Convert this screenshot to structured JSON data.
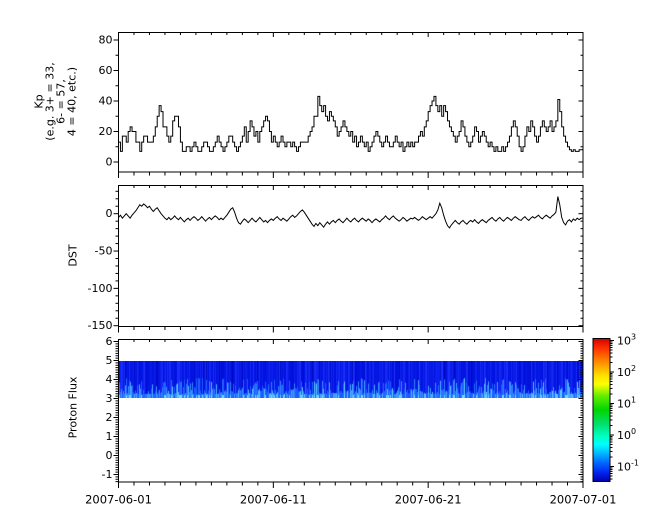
{
  "figure": {
    "background": "#ffffff",
    "series_color": "#000000"
  },
  "xaxis": {
    "major_tick_labels": [
      "2007-06-01",
      "2007-06-11",
      "2007-06-21",
      "2007-07-01"
    ],
    "major_tick_days": [
      0,
      10,
      20,
      30
    ],
    "minor_tick_interval_days": 1,
    "span_days": 30
  },
  "chart_data": [
    {
      "panel": "kp",
      "type": "line",
      "line_style": "step",
      "color": "#000000",
      "ylabel_lines": [
        "Kp",
        "(e.g. 3+ = 33,",
        "6- = 57,",
        "4 = 40, etc.)"
      ],
      "ytick_labels": [
        "0",
        "20",
        "40",
        "60",
        "80"
      ],
      "yticks": [
        0,
        20,
        40,
        60,
        80
      ],
      "ytick_minor_step": 10,
      "ylim": [
        -6.6,
        84.9
      ],
      "sample_hours": 3,
      "x_start": "2007-06-01",
      "x_end": "2007-07-01",
      "values": [
        13,
        7,
        17,
        17,
        13,
        20,
        23,
        20,
        20,
        13,
        13,
        7,
        13,
        17,
        17,
        13,
        13,
        13,
        17,
        23,
        30,
        37,
        33,
        23,
        23,
        17,
        13,
        17,
        27,
        30,
        30,
        23,
        13,
        7,
        7,
        10,
        10,
        7,
        10,
        13,
        10,
        7,
        7,
        10,
        13,
        13,
        10,
        7,
        7,
        10,
        13,
        17,
        13,
        10,
        7,
        10,
        13,
        17,
        17,
        13,
        10,
        7,
        10,
        13,
        17,
        23,
        13,
        20,
        27,
        23,
        17,
        20,
        13,
        20,
        23,
        27,
        30,
        27,
        20,
        13,
        17,
        13,
        10,
        13,
        17,
        13,
        10,
        13,
        13,
        10,
        13,
        10,
        7,
        10,
        13,
        13,
        13,
        13,
        17,
        20,
        23,
        30,
        30,
        43,
        37,
        33,
        37,
        30,
        27,
        33,
        30,
        27,
        23,
        17,
        20,
        23,
        27,
        23,
        20,
        17,
        20,
        13,
        17,
        10,
        13,
        17,
        13,
        10,
        13,
        7,
        10,
        13,
        17,
        20,
        17,
        13,
        10,
        13,
        17,
        13,
        10,
        10,
        13,
        17,
        13,
        10,
        13,
        7,
        10,
        13,
        10,
        13,
        10,
        13,
        13,
        17,
        20,
        17,
        23,
        27,
        33,
        37,
        40,
        43,
        37,
        33,
        37,
        30,
        37,
        33,
        27,
        23,
        20,
        17,
        13,
        17,
        20,
        27,
        23,
        17,
        13,
        10,
        13,
        17,
        23,
        20,
        13,
        17,
        20,
        17,
        13,
        10,
        13,
        10,
        7,
        10,
        7,
        7,
        10,
        7,
        10,
        13,
        17,
        23,
        27,
        23,
        17,
        10,
        7,
        10,
        17,
        23,
        20,
        27,
        23,
        17,
        13,
        17,
        23,
        27,
        23,
        20,
        23,
        27,
        20,
        23,
        27,
        41,
        33,
        23,
        17,
        13,
        10,
        8,
        7,
        8,
        7,
        7,
        8,
        8
      ]
    },
    {
      "panel": "dst",
      "type": "line",
      "line_style": "linear",
      "color": "#000000",
      "ylabel": "DST",
      "ytick_labels": [
        "0",
        "-50",
        "-100",
        "-150"
      ],
      "yticks": [
        0,
        -50,
        -100,
        -150
      ],
      "ytick_minor_step": 10,
      "ylim": [
        -151,
        38
      ],
      "sample_hours": 3,
      "x_start": "2007-06-01",
      "x_end": "2007-07-01",
      "values": [
        -5,
        -2,
        -6,
        -3,
        0,
        -3,
        -6,
        -2,
        1,
        4,
        8,
        12,
        10,
        13,
        11,
        8,
        10,
        6,
        3,
        6,
        8,
        4,
        0,
        -3,
        -6,
        -8,
        -5,
        -8,
        -6,
        -3,
        -6,
        -8,
        -5,
        -8,
        -11,
        -8,
        -6,
        -9,
        -6,
        -4,
        -6,
        -9,
        -7,
        -4,
        -7,
        -10,
        -7,
        -5,
        -8,
        -5,
        -3,
        -5,
        -8,
        -6,
        -8,
        -5,
        -2,
        2,
        6,
        8,
        2,
        -6,
        -12,
        -14,
        -10,
        -7,
        -9,
        -12,
        -9,
        -6,
        -9,
        -11,
        -8,
        -5,
        -8,
        -11,
        -9,
        -12,
        -9,
        -7,
        -9,
        -6,
        -4,
        -7,
        -9,
        -6,
        -8,
        -10,
        -7,
        -4,
        -2,
        -5,
        -3,
        0,
        3,
        5,
        2,
        -2,
        -6,
        -10,
        -14,
        -17,
        -13,
        -16,
        -12,
        -15,
        -18,
        -14,
        -11,
        -14,
        -11,
        -9,
        -12,
        -9,
        -7,
        -10,
        -12,
        -9,
        -6,
        -9,
        -11,
        -8,
        -6,
        -9,
        -11,
        -8,
        -6,
        -8,
        -10,
        -7,
        -9,
        -12,
        -9,
        -7,
        -9,
        -11,
        -8,
        -6,
        -3,
        -6,
        -8,
        -5,
        -3,
        -6,
        -8,
        -10,
        -8,
        -5,
        -7,
        -10,
        -8,
        -6,
        -7,
        -5,
        -7,
        -9,
        -7,
        -4,
        -6,
        -8,
        -6,
        -4,
        -6,
        -3,
        0,
        5,
        14,
        8,
        -2,
        -10,
        -16,
        -19,
        -15,
        -12,
        -9,
        -12,
        -14,
        -11,
        -9,
        -12,
        -14,
        -11,
        -9,
        -11,
        -8,
        -11,
        -13,
        -10,
        -8,
        -10,
        -12,
        -9,
        -7,
        -5,
        -8,
        -10,
        -7,
        -5,
        -8,
        -10,
        -7,
        -5,
        -7,
        -9,
        -6,
        -4,
        -6,
        -8,
        -9,
        -6,
        -4,
        -7,
        -9,
        -6,
        -4,
        -6,
        -4,
        -2,
        -5,
        -7,
        -4,
        -2,
        -4,
        -6,
        -3,
        -1,
        2,
        23,
        12,
        -5,
        -12,
        -15,
        -10,
        -8,
        -11,
        -7,
        -9,
        -6,
        -8,
        -6
      ]
    },
    {
      "panel": "proton_flux",
      "type": "heatmap",
      "ylabel": "Proton Flux",
      "ytick_labels": [
        "-1",
        "0",
        "1",
        "2",
        "3",
        "4",
        "5",
        "6"
      ],
      "yticks": [
        -1,
        0,
        1,
        2,
        3,
        4,
        5,
        6
      ],
      "ytick_minor_step": 0.125,
      "ylim": [
        -1.45,
        6.1
      ],
      "band_y_range": [
        3,
        5
      ],
      "band_flux_range": [
        0.08,
        0.5
      ],
      "band_description": "continuous blue band between y=3 and y=5 with vertical streak variability, brighter cyan-blue near lower edge",
      "streak_palette": {
        "top_dark": "#0006b4",
        "top_base": "#0012e0",
        "top_bright": "#2236ff",
        "bottom_base": "#1a5aff",
        "bottom_bright": "#5fd0ff",
        "edge_bright": "#66e0ff"
      },
      "colorbar": {
        "scale": "log",
        "mantissa": "10",
        "tick_exponents": [
          "3",
          "2",
          "1",
          "0",
          "-1"
        ],
        "gradient_stops": [
          {
            "o": 0.0,
            "c": "#d10000"
          },
          {
            "o": 0.07,
            "c": "#ff3300"
          },
          {
            "o": 0.16,
            "c": "#ff8800"
          },
          {
            "o": 0.26,
            "c": "#ffe100"
          },
          {
            "o": 0.32,
            "c": "#fbff00"
          },
          {
            "o": 0.4,
            "c": "#66ee00"
          },
          {
            "o": 0.5,
            "c": "#00d400"
          },
          {
            "o": 0.6,
            "c": "#00e070"
          },
          {
            "o": 0.68,
            "c": "#00ffbb"
          },
          {
            "o": 0.74,
            "c": "#00ffff"
          },
          {
            "o": 0.8,
            "c": "#00bbff"
          },
          {
            "o": 0.87,
            "c": "#0066ff"
          },
          {
            "o": 0.94,
            "c": "#0022ee"
          },
          {
            "o": 1.0,
            "c": "#0000aa"
          }
        ]
      }
    }
  ]
}
